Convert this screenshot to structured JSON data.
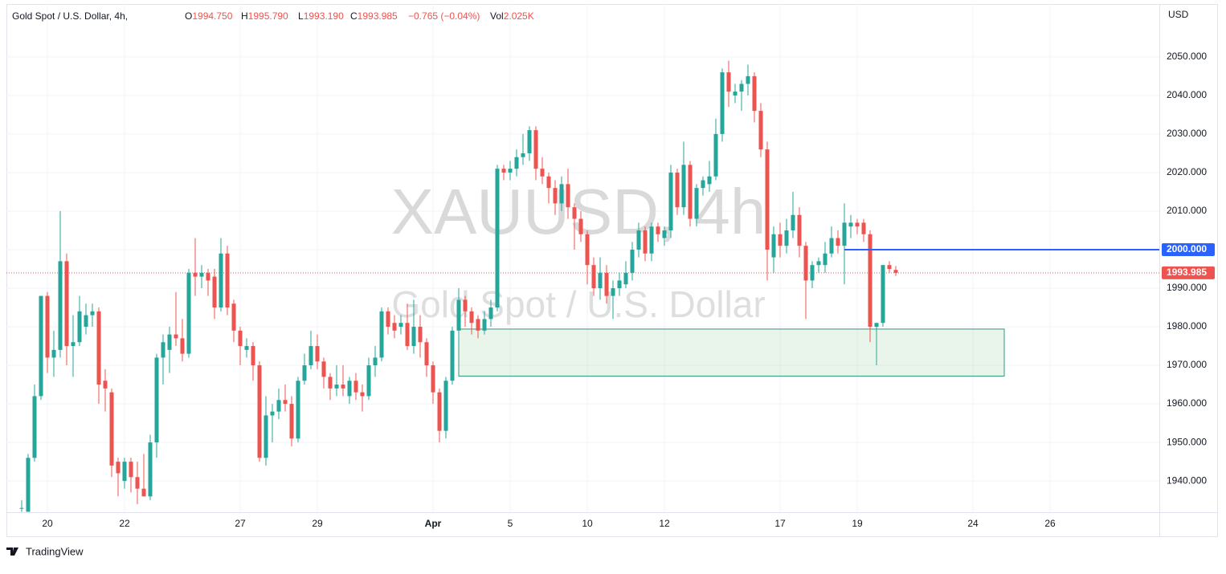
{
  "header": {
    "symbol": "Gold Spot / U.S. Dollar, 4h,",
    "ohlc": [
      {
        "label": "O",
        "value": "1994.750"
      },
      {
        "label": "H",
        "value": "1995.790"
      },
      {
        "label": "L",
        "value": "1993.190"
      },
      {
        "label": "C",
        "value": "1993.985"
      }
    ],
    "change": "−0.765 (−0.04%)",
    "volume_label": "Vol",
    "volume": "2.025K"
  },
  "watermark": {
    "symbol": "XAUUSD, 4h",
    "description": "Gold Spot / U.S. Dollar"
  },
  "branding": "TradingView",
  "chart_data": {
    "type": "candlestick",
    "y_axis_label": "USD",
    "categories": [
      null,
      null,
      null,
      null,
      "20",
      null,
      null,
      null,
      null,
      null,
      null,
      null,
      null,
      null,
      null,
      null,
      "22",
      null,
      null,
      null,
      null,
      null,
      null,
      null,
      null,
      null,
      null,
      null,
      null,
      null,
      null,
      null,
      null,
      null,
      "27",
      null,
      null,
      null,
      null,
      null,
      null,
      null,
      null,
      null,
      null,
      null,
      "29",
      null,
      null,
      null,
      null,
      null,
      null,
      null,
      null,
      null,
      null,
      null,
      null,
      null,
      null,
      null,
      null,
      null,
      "Apr",
      null,
      null,
      null,
      null,
      null,
      null,
      null,
      null,
      null,
      null,
      null,
      "5",
      null,
      null,
      null,
      null,
      null,
      null,
      null,
      null,
      null,
      null,
      null,
      "10",
      null,
      null,
      null,
      null,
      null,
      null,
      null,
      null,
      null,
      null,
      null,
      "12",
      null,
      null,
      null,
      null,
      null,
      null,
      null,
      null,
      null,
      null,
      null,
      null,
      null,
      null,
      null,
      null,
      null,
      "17",
      null,
      null,
      null,
      null,
      null,
      null,
      null,
      null,
      null,
      null,
      null,
      "19",
      null,
      null,
      null,
      null,
      null,
      null,
      null,
      null,
      null,
      null,
      null,
      null,
      null,
      null,
      null,
      null,
      null,
      "24",
      null,
      null,
      null,
      null,
      null,
      null,
      null,
      null,
      null,
      null,
      null,
      "26",
      null,
      null,
      null,
      null,
      null,
      null,
      null,
      null,
      null,
      null,
      null,
      null,
      null,
      null,
      null,
      null,
      null
    ],
    "open": [
      1933,
      1932,
      1946,
      1962,
      1988,
      1972,
      1974,
      1997,
      1975,
      1976,
      1980,
      1983,
      1984,
      1966,
      1963,
      1945,
      1940,
      1945,
      1941,
      1938,
      1936,
      1950,
      1972,
      1974,
      1978,
      1977,
      1973,
      1994,
      1993,
      1994,
      1993,
      1985,
      1999,
      1986,
      1979,
      1974,
      1975,
      1970,
      1946,
      1957,
      1958,
      1961,
      1960,
      1951,
      1966,
      1970,
      1975,
      1971,
      1967,
      1964,
      1965,
      1962,
      1966,
      1963,
      1962,
      1970,
      1972,
      1984,
      1981,
      1980,
      1981,
      1975,
      1980,
      1976,
      1970,
      1963,
      1953,
      1966,
      1979,
      1987,
      1984,
      1982,
      1979,
      1982,
      1985,
      2021,
      2020,
      2021,
      2024,
      2025,
      2031,
      2021,
      2019,
      2016,
      2012,
      2017,
      2011,
      2008,
      2004,
      1996,
      1990,
      1994,
      1988,
      1990,
      1991,
      1994,
      2000,
      2005,
      1999,
      2006,
      2003,
      2005,
      2020,
      2011,
      2022,
      2008,
      2016,
      2017,
      2019,
      2030,
      2046,
      2040,
      2041,
      2043,
      2045,
      2036,
      2026,
      1998,
      2004,
      2001,
      2005,
      2009,
      2001,
      1992,
      1996,
      1996,
      1999,
      2003,
      2001,
      2006,
      2007,
      2007,
      2004,
      1980,
      1981,
      1996,
      1994.75,
      null,
      null,
      null,
      null,
      null,
      null,
      null,
      null,
      null,
      null,
      null,
      null,
      null,
      null,
      null,
      null,
      null,
      null,
      null,
      null,
      null,
      null,
      null,
      null,
      null,
      null,
      null,
      null,
      null,
      null,
      null,
      null,
      null,
      null,
      null,
      null,
      null,
      null,
      null,
      null,
      null
    ],
    "high": [
      1935,
      1947,
      1965,
      1988,
      1989,
      1979,
      2010,
      1999,
      1983,
      1988,
      1986,
      1986,
      1985,
      1969,
      1964,
      1946,
      1946,
      1946,
      1945,
      1947,
      1952,
      1973,
      1978,
      1980,
      1989,
      1982,
      1995,
      2003,
      1996,
      1995,
      1995,
      2003,
      2001,
      1987,
      1980,
      1977,
      1976,
      1971,
      1962,
      1960,
      1964,
      1965,
      1962,
      1967,
      1973,
      1979,
      1978,
      1972,
      1968,
      1970,
      1970,
      1967,
      1968,
      1965,
      1972,
      1975,
      1985,
      1985,
      1983,
      1983,
      1986,
      1987,
      1983,
      1977,
      1971,
      1964,
      1967,
      1980,
      1990,
      1988,
      1985,
      1983,
      1984,
      1987,
      2022,
      2022,
      2023,
      2026,
      2030,
      2032,
      2032,
      2024,
      2020,
      2018,
      2019,
      2021,
      2012,
      2010,
      2005,
      1998,
      1998,
      1996,
      1992,
      1994,
      1997,
      2002,
      2007,
      2006,
      2007,
      2007,
      2006,
      2022,
      2021,
      2028,
      2023,
      2017,
      2019,
      2023,
      2034,
      2047,
      2049,
      2043,
      2044,
      2048,
      2046,
      2038,
      2028,
      2006,
      2007,
      2008,
      2015,
      2011,
      2002,
      1997,
      1998,
      2002,
      2006,
      2005,
      2012,
      2009,
      2008,
      2008,
      2005,
      1981,
      1996,
      1997,
      1995.79,
      null,
      null,
      null,
      null,
      null,
      null,
      null,
      null,
      null,
      null,
      null,
      null,
      null,
      null,
      null,
      null,
      null,
      null,
      null,
      null,
      null,
      null,
      null,
      null,
      null,
      null,
      null,
      null,
      null,
      null,
      null,
      null,
      null,
      null,
      null,
      null,
      null,
      null,
      null,
      null,
      null
    ],
    "low": [
      1932,
      1932,
      1945,
      1961,
      1968,
      1967,
      1972,
      1970,
      1967,
      1975,
      1978,
      1980,
      1960,
      1958,
      1941,
      1936,
      1938,
      1937,
      1934,
      1936,
      1935,
      1946,
      1965,
      1968,
      1975,
      1971,
      1972,
      1988,
      1990,
      1988,
      1982,
      1984,
      1983,
      1976,
      1970,
      1972,
      1966,
      1945,
      1944,
      1950,
      1956,
      1958,
      1949,
      1950,
      1965,
      1969,
      1969,
      1964,
      1961,
      1962,
      1962,
      1960,
      1961,
      1958,
      1961,
      1967,
      1971,
      1978,
      1977,
      1978,
      1974,
      1973,
      1972,
      1967,
      1960,
      1950,
      1951,
      1965,
      1977,
      1980,
      1978,
      1977,
      1978,
      1980,
      1984,
      2018,
      2018,
      2019,
      2022,
      2023,
      2018,
      2017,
      2012,
      2009,
      2010,
      2008,
      2000,
      2002,
      1991,
      1988,
      1987,
      1986,
      1982,
      1988,
      1990,
      1992,
      1998,
      1997,
      1997,
      2002,
      2001,
      2003,
      2009,
      2009,
      2006,
      2006,
      2014,
      2015,
      2018,
      2028,
      2037,
      2038,
      2036,
      2040,
      2033,
      2024,
      1992,
      1994,
      1998,
      1999,
      2003,
      1998,
      1982,
      1990,
      1994,
      1994,
      1998,
      1999,
      1991,
      2003,
      2004,
      2002,
      1976,
      1970,
      1980,
      1994,
      1993.19,
      null,
      null,
      null,
      null,
      null,
      null,
      null,
      null,
      null,
      null,
      null,
      null,
      null,
      null,
      null,
      null,
      null,
      null,
      null,
      null,
      null,
      null,
      null,
      null,
      null,
      null,
      null,
      null,
      null,
      null,
      null,
      null,
      null,
      null,
      null,
      null,
      null,
      null,
      null,
      null,
      null
    ],
    "close": [
      1933,
      1946,
      1962,
      1988,
      1972,
      1974,
      1997,
      1975,
      1976,
      1984,
      1983,
      1984,
      1965,
      1964,
      1944,
      1942,
      1945,
      1941,
      1938,
      1936,
      1950,
      1972,
      1976,
      1978,
      1977,
      1973,
      1994,
      1993,
      1994,
      1992,
      1985,
      1999,
      1985,
      1979,
      1975,
      1975,
      1970,
      1946,
      1957,
      1958,
      1961,
      1960,
      1951,
      1966,
      1970,
      1975,
      1971,
      1967,
      1964,
      1965,
      1964,
      1966,
      1963,
      1962,
      1970,
      1972,
      1984,
      1980,
      1979,
      1981,
      1975,
      1980,
      1976,
      1970,
      1963,
      1953,
      1966,
      1979,
      1987,
      1984,
      1981,
      1979,
      1982,
      1985,
      2021,
      2020,
      2021,
      2024,
      2025,
      2031,
      2021,
      2019,
      2016,
      2012,
      2017,
      2011,
      2008,
      2004,
      1996,
      1990,
      1994,
      1988,
      1990,
      1992,
      1994,
      2000,
      2005,
      1999,
      2006,
      2004,
      2005,
      2020,
      2011,
      2022,
      2008,
      2016,
      2018,
      2019,
      2030,
      2046,
      2041,
      2041,
      2043,
      2045,
      2036,
      2026,
      2000,
      2004,
      2001,
      2005,
      2009,
      2001,
      1992,
      1996,
      1997,
      1999,
      2003,
      2001,
      2007,
      2007,
      2006,
      2004,
      1980,
      1981,
      1996,
      1995,
      1993.985,
      null,
      null,
      null,
      null,
      null,
      null,
      null,
      null,
      null,
      null,
      null,
      null,
      null,
      null,
      null,
      null,
      null,
      null,
      null,
      null,
      null,
      null,
      null,
      null,
      null,
      null,
      null,
      null,
      null,
      null,
      null,
      null,
      null,
      null,
      null,
      null,
      null,
      null,
      null,
      null,
      null
    ],
    "up_color": "#26a69a",
    "down_color": "#ef5350",
    "ylim": [
      1931.9,
      2063.72
    ],
    "yticks": [
      {
        "value": 1940,
        "label": "1940.000"
      },
      {
        "value": 1950,
        "label": "1950.000"
      },
      {
        "value": 1960,
        "label": "1960.000"
      },
      {
        "value": 1970,
        "label": "1970.000"
      },
      {
        "value": 1980,
        "label": "1980.000"
      },
      {
        "value": 1990,
        "label": "1990.000"
      },
      {
        "value": 2000,
        "label": "2000.000"
      },
      {
        "value": 2010,
        "label": "2010.000"
      },
      {
        "value": 2020,
        "label": "2020.000"
      },
      {
        "value": 2030,
        "label": "2030.000"
      },
      {
        "value": 2040,
        "label": "2040.000"
      },
      {
        "value": 2050,
        "label": "2050.000"
      }
    ],
    "grid": true,
    "price_line": {
      "value": 1993.985,
      "label": "1993.985",
      "color": "#ef5350"
    },
    "horizontal_line": {
      "value": 2000,
      "label": "2000.000",
      "color": "#2962ff"
    },
    "zone": {
      "top": 1979.4,
      "bottom": 1967.2,
      "color": "#4caf50"
    }
  }
}
